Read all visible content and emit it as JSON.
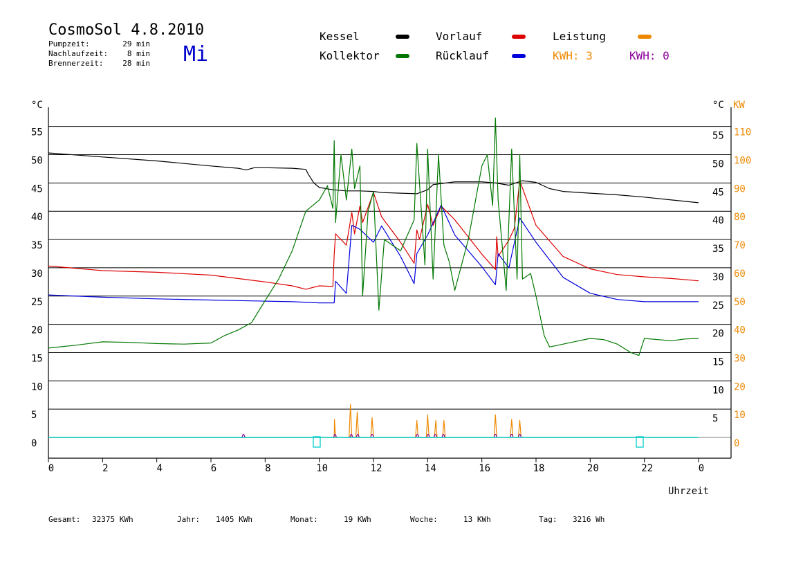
{
  "header": {
    "title": "CosmoSol 4.8.2010",
    "weekday": "Mi",
    "weekday_color": "#0000cc",
    "times": [
      {
        "label": "Pumpzeit:",
        "value": "29 min"
      },
      {
        "label": "Nachlaufzeit:",
        "value": "8 min"
      },
      {
        "label": "Brennerzeit:",
        "value": "28 min"
      }
    ]
  },
  "legend": [
    {
      "label": "Kessel",
      "color": "#000000"
    },
    {
      "label": "Vorlauf",
      "color": "#dd0000"
    },
    {
      "label": "Leistung",
      "color": "#ee8800"
    },
    {
      "label": "Kollektor",
      "color": "#007700"
    },
    {
      "label": "Rücklauf",
      "color": "#0000dd"
    }
  ],
  "kwh": [
    {
      "text": "KWH: 3",
      "color": "#ee8800"
    },
    {
      "text": "KWH: 0",
      "color": "#880099"
    }
  ],
  "footer": [
    {
      "label": "Gesamt:",
      "value": "32375 KWh"
    },
    {
      "label": "Jahr:",
      "value": "1405 KWh"
    },
    {
      "label": "Monat:",
      "value": "19 KWh"
    },
    {
      "label": "Woche:",
      "value": "13 KWh"
    },
    {
      "label": "Tag:",
      "value": "3216 Wh"
    }
  ],
  "chart_data": {
    "type": "line",
    "xlabel": "Uhrzeit",
    "ylabel_left": "°C",
    "ylabel_right": [
      "°C",
      "KW"
    ],
    "x_ticks": [
      "0",
      "2",
      "4",
      "6",
      "8",
      "10",
      "12",
      "14",
      "16",
      "18",
      "20",
      "22",
      "0"
    ],
    "xlim": [
      0,
      24
    ],
    "y_ticks": [
      0,
      5,
      10,
      15,
      20,
      25,
      30,
      35,
      40,
      45,
      50,
      55
    ],
    "ylim": [
      -3.5,
      60
    ],
    "kw_ticks": [
      0,
      10,
      20,
      30,
      40,
      50,
      60,
      70,
      80,
      90,
      100,
      110
    ],
    "grid": true,
    "series": [
      {
        "name": "Kessel",
        "color": "#000000",
        "x": [
          0,
          2,
          4,
          6,
          7,
          7.3,
          7.6,
          8,
          9,
          9.5,
          9.6,
          9.8,
          10,
          10.5,
          11,
          11.5,
          12,
          12.3,
          13,
          13.6,
          14,
          14.2,
          15,
          16,
          16.5,
          17,
          17.5,
          18,
          18.5,
          19,
          20,
          21,
          22,
          23,
          24
        ],
        "y": [
          50.3,
          49.6,
          48.9,
          48,
          47.6,
          47.3,
          47.7,
          47.7,
          47.6,
          47.4,
          46.5,
          45,
          44.2,
          43.8,
          43.6,
          43.6,
          43.5,
          43.3,
          43.2,
          43.1,
          43.8,
          44.7,
          45.2,
          45.2,
          45,
          44.6,
          45.4,
          45.1,
          44,
          43.5,
          43.2,
          42.9,
          42.5,
          42,
          41.5
        ]
      },
      {
        "name": "Vorlauf",
        "color": "#dd0000",
        "x": [
          0,
          2,
          4,
          6,
          8,
          9,
          9.5,
          10,
          10.5,
          10.55,
          10.6,
          11,
          11.2,
          11.3,
          11.5,
          11.6,
          12,
          12.3,
          13,
          13.5,
          13.6,
          13.7,
          14,
          14.2,
          14.5,
          15,
          16,
          16.5,
          16.55,
          16.6,
          17,
          17.2,
          17.4,
          18,
          19,
          20,
          21,
          22,
          23,
          24
        ],
        "y": [
          30.3,
          29.5,
          29.2,
          28.7,
          27.5,
          26.8,
          26.2,
          26.8,
          26.7,
          32.4,
          36,
          34,
          39.8,
          36,
          40.9,
          38,
          43.3,
          39,
          34.5,
          30.8,
          36.7,
          35,
          41.2,
          37.5,
          40.9,
          38.5,
          32.4,
          29.7,
          35.5,
          32,
          34.9,
          37,
          45.4,
          37.5,
          32,
          29.8,
          28.8,
          28.4,
          28.1,
          27.7
        ]
      },
      {
        "name": "Rücklauf",
        "color": "#0000dd",
        "x": [
          0,
          2,
          4,
          6,
          8,
          9,
          10,
          10.55,
          10.6,
          11,
          11.2,
          11.5,
          12,
          12.3,
          13,
          13.5,
          13.6,
          14,
          14.5,
          15,
          16,
          16.5,
          16.6,
          17,
          17.4,
          18,
          19,
          20,
          21,
          22,
          23,
          24
        ],
        "y": [
          25.2,
          24.8,
          24.5,
          24.3,
          24.1,
          24,
          23.8,
          23.8,
          27.6,
          25.5,
          37.5,
          36.8,
          34.5,
          37.4,
          32,
          27.2,
          32.5,
          35.8,
          41.1,
          35.8,
          30.2,
          27,
          32.5,
          30,
          38.8,
          34.5,
          28.3,
          25.5,
          24.4,
          24,
          24,
          24
        ]
      },
      {
        "name": "Kollektor",
        "color": "#007700",
        "x": [
          0,
          1,
          2,
          3,
          4,
          5,
          6,
          6.5,
          7,
          7.5,
          8,
          8.5,
          9,
          9.5,
          10,
          10.3,
          10.5,
          10.55,
          10.6,
          10.8,
          11,
          11.2,
          11.3,
          11.5,
          11.6,
          11.8,
          12,
          12.2,
          12.4,
          13,
          13.5,
          13.6,
          13.9,
          14,
          14.2,
          14.4,
          14.6,
          14.8,
          15,
          15.5,
          16,
          16.2,
          16.4,
          16.5,
          16.6,
          16.9,
          17.1,
          17.3,
          17.4,
          17.5,
          17.8,
          18,
          18.3,
          18.5,
          19,
          19.5,
          20,
          20.5,
          21,
          21.5,
          21.8,
          22,
          22.5,
          23,
          23.5,
          24
        ],
        "y": [
          15.8,
          16.3,
          16.9,
          16.8,
          16.6,
          16.5,
          16.7,
          18,
          19,
          20.3,
          24.2,
          28,
          33,
          40,
          42,
          44.5,
          40.5,
          52.5,
          38,
          50,
          42,
          51,
          44,
          48,
          25,
          40,
          43.5,
          22.5,
          35,
          33,
          38.5,
          52,
          30.5,
          51,
          28,
          50,
          34,
          31,
          26,
          35,
          48,
          50,
          41,
          56.5,
          42,
          26,
          51,
          28,
          50,
          28,
          29,
          25,
          18,
          16,
          16.5,
          17,
          17.5,
          17.3,
          16.5,
          15,
          14.5,
          17.5,
          17.3,
          17.1,
          17.4,
          17.5
        ]
      },
      {
        "name": "Leistung",
        "color": "#ee8800",
        "x": [
          0,
          10.55,
          10.56,
          10.6,
          11.1,
          11.15,
          11.2,
          11.35,
          11.4,
          11.45,
          11.9,
          11.95,
          12,
          13.55,
          13.6,
          13.65,
          13.95,
          14,
          14.05,
          14.25,
          14.3,
          14.35,
          14.55,
          14.6,
          14.65,
          16.45,
          16.5,
          16.55,
          17.05,
          17.1,
          17.15,
          17.35,
          17.4,
          17.45,
          24
        ],
        "y": [
          0,
          0,
          3.2,
          0,
          0,
          5.8,
          0,
          0,
          4.5,
          0,
          0,
          3.5,
          0,
          0,
          3,
          0,
          0,
          4,
          0,
          0,
          3,
          0,
          0,
          3,
          0,
          0,
          4,
          0,
          0,
          3.2,
          0,
          0,
          3,
          0,
          0
        ]
      }
    ],
    "burner_on_x": [
      7.2,
      10.58,
      11.18,
      11.42,
      11.95,
      13.62,
      14.02,
      14.28,
      14.58,
      16.5,
      17.1,
      17.4
    ]
  }
}
